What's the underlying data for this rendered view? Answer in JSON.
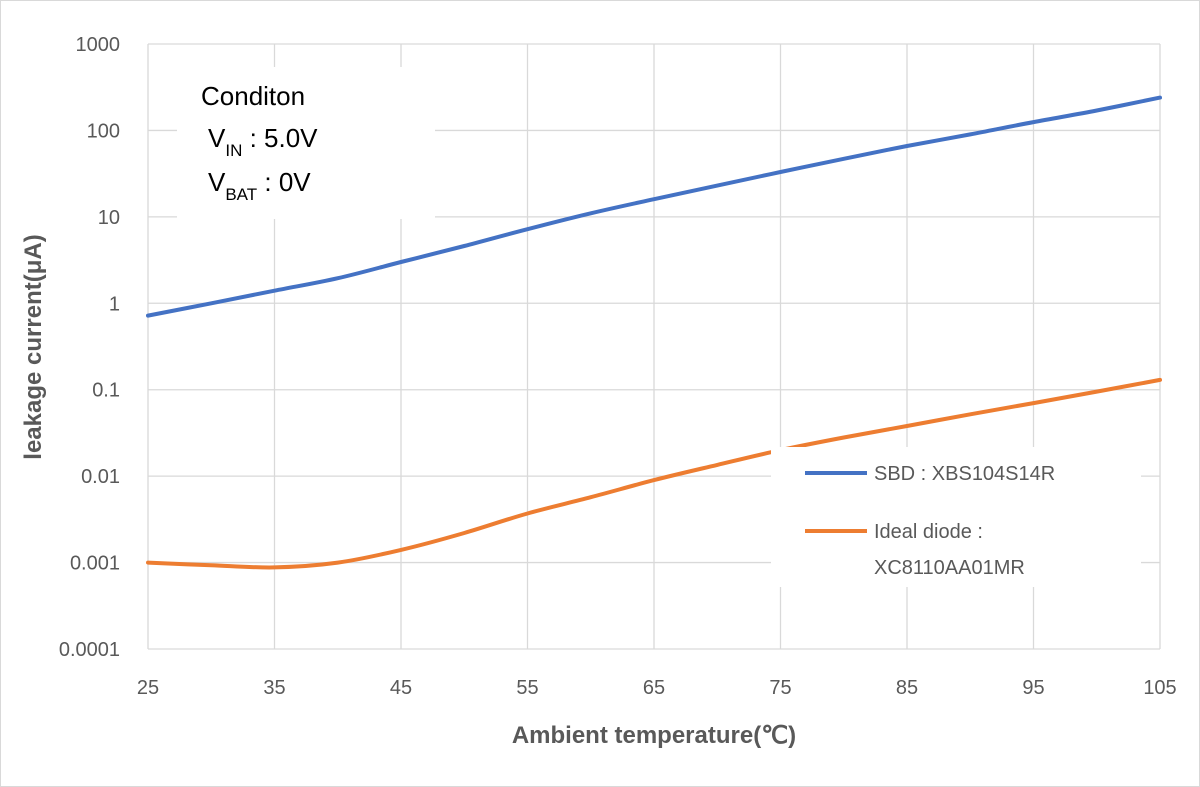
{
  "chart_data": {
    "type": "line",
    "xlabel": "Ambient temperature(℃)",
    "ylabel": "leakage current(μA)",
    "x_ticks": [
      25,
      35,
      45,
      55,
      65,
      75,
      85,
      95,
      105
    ],
    "y_tick_labels": [
      "1000",
      "100",
      "10",
      "1",
      "0.1",
      "0.01",
      "0.001",
      "0.0001"
    ],
    "y_tick_values": [
      1000,
      100,
      10,
      1,
      0.1,
      0.01,
      0.001,
      0.0001
    ],
    "xlim": [
      25,
      105
    ],
    "ylim": [
      0.0001,
      1000
    ],
    "y_scale": "log",
    "grid": true,
    "legend_position": "right",
    "series": [
      {
        "name": "SBD : XBS104S14R",
        "color": "#4472c4",
        "x": [
          25,
          30,
          35,
          40,
          45,
          50,
          55,
          60,
          65,
          70,
          75,
          80,
          85,
          90,
          95,
          100,
          105
        ],
        "y": [
          0.72,
          1.0,
          1.4,
          1.95,
          3.0,
          4.6,
          7.2,
          11,
          16,
          23,
          33,
          47,
          66,
          90,
          125,
          170,
          240
        ]
      },
      {
        "name": "Ideal diode : XC8110AA01MR",
        "color": "#ed7d31",
        "x": [
          25,
          30,
          35,
          40,
          45,
          50,
          55,
          60,
          65,
          70,
          75,
          80,
          85,
          90,
          95,
          100,
          105
        ],
        "y": [
          0.001,
          0.00093,
          0.00088,
          0.001,
          0.0014,
          0.0022,
          0.0037,
          0.0057,
          0.009,
          0.0135,
          0.02,
          0.028,
          0.038,
          0.052,
          0.07,
          0.095,
          0.13
        ]
      }
    ],
    "legend": [
      {
        "lines": [
          "SBD : XBS104S14R"
        ]
      },
      {
        "lines": [
          "Ideal diode :",
          "XC8110AA01MR"
        ]
      }
    ],
    "annotation": {
      "title": "Conditon",
      "lines": [
        {
          "main": "V",
          "sub": "IN",
          "rest": " : 5.0V"
        },
        {
          "main": "V",
          "sub": "BAT",
          "rest": " : 0V"
        }
      ]
    }
  }
}
